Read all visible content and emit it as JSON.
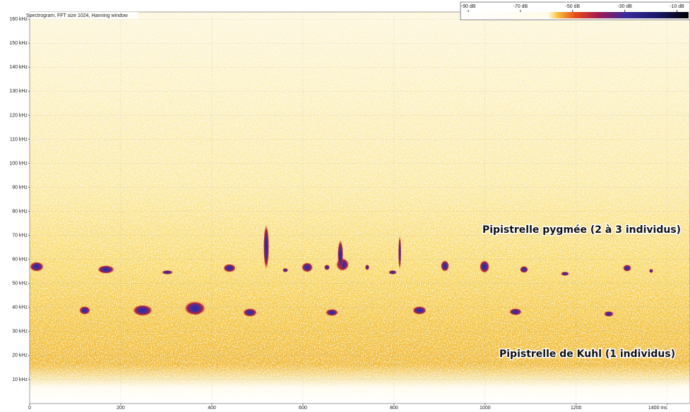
{
  "chart_data": {
    "type": "spectrogram",
    "title": "Spectrogram, FFT size 1024, Hanning window",
    "xlim": [
      0,
      1450
    ],
    "xticks": [
      0,
      200,
      400,
      600,
      800,
      1000,
      1200,
      {
        "value": 1400,
        "label": "1400 ms"
      }
    ],
    "ylim": [
      0,
      163
    ],
    "yticks": [
      {
        "value": 10,
        "label": "10 kHz"
      },
      {
        "value": 20,
        "label": "20 kHz"
      },
      {
        "value": 30,
        "label": "30 kHz"
      },
      {
        "value": 40,
        "label": "40 kHz"
      },
      {
        "value": 50,
        "label": "50 kHz"
      },
      {
        "value": 60,
        "label": "60 kHz"
      },
      {
        "value": 70,
        "label": "70 kHz"
      },
      {
        "value": 80,
        "label": "80 kHz"
      },
      {
        "value": 90,
        "label": "90 kHz"
      },
      {
        "value": 100,
        "label": "100 kHz"
      },
      {
        "value": 110,
        "label": "110 kHz"
      },
      {
        "value": 120,
        "label": "120 kHz"
      },
      {
        "value": 130,
        "label": "130 kHz"
      },
      {
        "value": 140,
        "label": "140 kHz"
      },
      {
        "value": 150,
        "label": "150 kHz"
      },
      {
        "value": 160,
        "label": "160 kHz"
      }
    ],
    "grid": true,
    "colorbar": {
      "lim": [
        -93,
        -5
      ],
      "ticks": [
        {
          "value": -90,
          "label": "-90 dB"
        },
        {
          "value": -70,
          "label": "-70 dB"
        },
        {
          "value": -50,
          "label": "-50 dB"
        },
        {
          "value": -30,
          "label": "-30 dB"
        },
        {
          "value": -10,
          "label": "-10 dB"
        }
      ]
    },
    "annotations": [
      "Pipistrelle pygmée (2 à 3 individus)",
      "Pipistrelle de Kuhl (1 individus)"
    ]
  }
}
